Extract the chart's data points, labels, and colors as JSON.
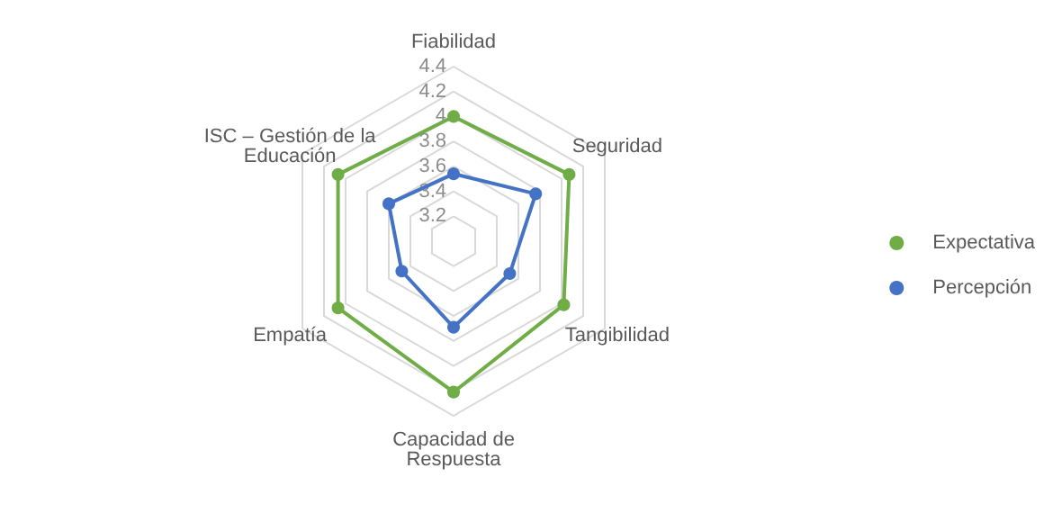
{
  "chart_data": {
    "type": "radar",
    "categories": [
      "Fiabilidad",
      "Seguridad",
      "Tangibilidad",
      "Capacidad de Respuesta",
      "Empatía",
      "ISC – Gestión de la Educación"
    ],
    "series": [
      {
        "name": "Expectativa",
        "color": "#70ad47",
        "values": [
          4.0,
          4.07,
          4.02,
          4.21,
          4.07,
          4.07
        ]
      },
      {
        "name": "Percepción",
        "color": "#4472c4",
        "values": [
          3.54,
          3.76,
          3.52,
          3.69,
          3.48,
          3.6
        ]
      }
    ],
    "ylim": [
      3.0,
      4.4
    ],
    "yticks": [
      3.2,
      3.4,
      3.6,
      3.8,
      4,
      4.2,
      4.4
    ],
    "grid": true,
    "legend": "right",
    "marker": "circle",
    "line_style": "solid"
  }
}
